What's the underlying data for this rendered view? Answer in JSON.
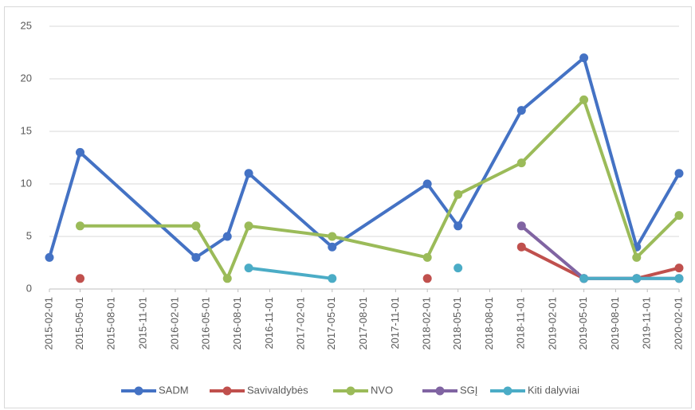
{
  "chart_data": {
    "type": "line",
    "x": [
      "2015-02-01",
      "2015-05-01",
      "2016-04-01",
      "2016-07-01",
      "2016-09-01",
      "2017-05-01",
      "2018-02-01",
      "2018-05-01",
      "2018-11-01",
      "2019-05-01",
      "2019-10-01",
      "2020-02-01"
    ],
    "series": [
      {
        "name": "SADM",
        "color": "#4472c4",
        "values": [
          3,
          13,
          3,
          5,
          11,
          4,
          10,
          6,
          17,
          22,
          4,
          11
        ]
      },
      {
        "name": "Savivaldybės",
        "color": "#c0504d",
        "values": [
          null,
          1,
          null,
          null,
          null,
          null,
          1,
          null,
          4,
          1,
          1,
          2
        ]
      },
      {
        "name": "NVO",
        "color": "#9bbb59",
        "values": [
          null,
          6,
          6,
          1,
          6,
          5,
          3,
          9,
          12,
          18,
          3,
          7
        ]
      },
      {
        "name": "SGĮ",
        "color": "#8064a2",
        "values": [
          null,
          null,
          null,
          null,
          null,
          null,
          null,
          null,
          6,
          1,
          1,
          1
        ]
      },
      {
        "name": "Kiti dalyviai",
        "color": "#4bacc6",
        "values": [
          null,
          null,
          null,
          null,
          2,
          1,
          null,
          2,
          null,
          1,
          1,
          1
        ]
      }
    ],
    "xlim": [
      "2015-02-01",
      "2020-02-01"
    ],
    "xticks": [
      "2015-02-01",
      "2015-05-01",
      "2015-08-01",
      "2015-11-01",
      "2016-02-01",
      "2016-05-01",
      "2016-08-01",
      "2016-11-01",
      "2017-02-01",
      "2017-05-01",
      "2017-08-01",
      "2017-11-01",
      "2018-02-01",
      "2018-05-01",
      "2018-08-01",
      "2018-11-01",
      "2019-02-01",
      "2019-05-01",
      "2019-08-01",
      "2019-11-01",
      "2020-02-01"
    ],
    "ylim": [
      0,
      25
    ],
    "yticks": [
      0,
      5,
      10,
      15,
      20,
      25
    ],
    "grid": true,
    "legend": "bottom"
  }
}
